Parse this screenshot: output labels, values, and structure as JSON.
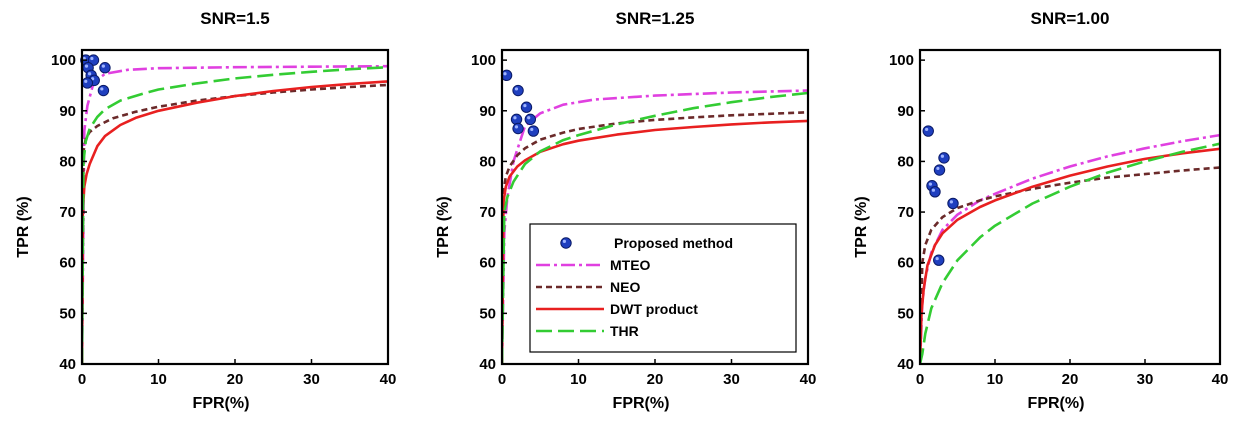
{
  "chart_data": [
    {
      "type": "line",
      "title": "SNR=1.5",
      "xlabel": "FPR(%)",
      "ylabel": "TPR (%)",
      "xlim": [
        0,
        40
      ],
      "ylim": [
        40,
        102
      ],
      "xticks": [
        "0",
        "10",
        "20",
        "30",
        "40"
      ],
      "yticks": [
        "40",
        "50",
        "60",
        "70",
        "80",
        "90",
        "100"
      ],
      "legend": false,
      "scatter": {
        "name": "Proposed method",
        "color": "#1f3fbf",
        "points": [
          [
            0.5,
            100
          ],
          [
            1.5,
            100
          ],
          [
            0.8,
            98.5
          ],
          [
            1.2,
            97
          ],
          [
            1.6,
            96
          ],
          [
            0.7,
            95.5
          ],
          [
            3,
            98.5
          ],
          [
            2.8,
            94
          ]
        ]
      },
      "series": [
        {
          "name": "MTEO",
          "color": "#e040e0",
          "dash": "14 4 3 4",
          "x": [
            0,
            0.3,
            0.7,
            1.5,
            3,
            6,
            10,
            20,
            30,
            40
          ],
          "y": [
            40,
            86,
            91,
            95.5,
            97.3,
            98.1,
            98.4,
            98.6,
            98.7,
            98.8
          ]
        },
        {
          "name": "NEO",
          "color": "#6b2a2a",
          "dash": "6 4",
          "x": [
            0,
            0.2,
            0.5,
            1,
            2,
            4,
            7,
            10,
            15,
            20,
            25,
            30,
            35,
            40
          ],
          "y": [
            40,
            82,
            84.5,
            85.8,
            87,
            88.5,
            89.8,
            90.8,
            92,
            92.9,
            93.6,
            94.2,
            94.7,
            95.1
          ]
        },
        {
          "name": "DWT product",
          "color": "#e82020",
          "dash": "",
          "x": [
            0,
            0.1,
            0.3,
            0.6,
            1,
            2,
            3,
            5,
            7,
            10,
            15,
            20,
            25,
            30,
            35,
            40
          ],
          "y": [
            40,
            70,
            75,
            77.5,
            79.5,
            83,
            85,
            87.2,
            88.6,
            90,
            91.6,
            92.9,
            93.9,
            94.7,
            95.3,
            95.8
          ]
        },
        {
          "name": "THR",
          "color": "#33cc33",
          "dash": "16 6",
          "x": [
            0,
            0.2,
            0.5,
            1,
            2,
            3,
            5,
            8,
            10,
            15,
            20,
            25,
            30,
            35,
            40
          ],
          "y": [
            40,
            80,
            84,
            86.5,
            88.8,
            90.3,
            92,
            93.4,
            94.2,
            95.4,
            96.4,
            97.1,
            97.7,
            98.2,
            98.6
          ]
        }
      ]
    },
    {
      "type": "line",
      "title": "SNR=1.25",
      "xlabel": "FPR(%)",
      "ylabel": "TPR (%)",
      "xlim": [
        0,
        40
      ],
      "ylim": [
        40,
        102
      ],
      "xticks": [
        "0",
        "10",
        "20",
        "30",
        "40"
      ],
      "yticks": [
        "40",
        "50",
        "60",
        "70",
        "80",
        "90",
        "100"
      ],
      "legend": true,
      "legend_position": "bottom-left",
      "scatter": {
        "name": "Proposed method",
        "color": "#1f3fbf",
        "points": [
          [
            0.6,
            97
          ],
          [
            2.1,
            94
          ],
          [
            1.9,
            88.3
          ],
          [
            2.1,
            86.5
          ],
          [
            3.2,
            90.7
          ],
          [
            3.7,
            88.3
          ],
          [
            4.1,
            86
          ]
        ]
      },
      "series": [
        {
          "name": "MTEO",
          "color": "#e040e0",
          "dash": "14 4 3 4",
          "x": [
            0,
            0.3,
            0.7,
            1.5,
            3,
            5,
            8,
            12,
            20,
            30,
            40
          ],
          "y": [
            40,
            66,
            73,
            80,
            87,
            89.5,
            91.2,
            92.2,
            93,
            93.6,
            94
          ]
        },
        {
          "name": "NEO",
          "color": "#6b2a2a",
          "dash": "6 4",
          "x": [
            0,
            0.2,
            0.5,
            1,
            2,
            3,
            5,
            8,
            10,
            15,
            20,
            25,
            30,
            35,
            40
          ],
          "y": [
            40,
            74,
            77,
            79,
            81.2,
            82.6,
            84.3,
            85.7,
            86.4,
            87.5,
            88.2,
            88.7,
            89.1,
            89.4,
            89.7
          ]
        },
        {
          "name": "DWT product",
          "color": "#e82020",
          "dash": "",
          "x": [
            0,
            0.2,
            0.5,
            1,
            2,
            3,
            5,
            8,
            10,
            15,
            20,
            25,
            30,
            35,
            40
          ],
          "y": [
            40,
            72,
            75,
            77,
            79,
            80.2,
            81.9,
            83.4,
            84.1,
            85.3,
            86.2,
            86.8,
            87.3,
            87.7,
            88
          ]
        },
        {
          "name": "THR",
          "color": "#33cc33",
          "dash": "16 6",
          "x": [
            0,
            0.3,
            0.7,
            1.5,
            3,
            5,
            8,
            10,
            15,
            20,
            25,
            30,
            35,
            40
          ],
          "y": [
            40,
            70,
            73,
            76,
            79.5,
            82,
            84.2,
            85.2,
            87.3,
            89,
            90.5,
            91.7,
            92.7,
            93.5
          ]
        }
      ]
    },
    {
      "type": "line",
      "title": "SNR=1.00",
      "xlabel": "FPR(%)",
      "ylabel": "TPR (%)",
      "xlim": [
        0,
        40
      ],
      "ylim": [
        40,
        102
      ],
      "xticks": [
        "0",
        "10",
        "20",
        "30",
        "40"
      ],
      "yticks": [
        "40",
        "50",
        "60",
        "70",
        "80",
        "90",
        "100"
      ],
      "legend": false,
      "scatter": {
        "name": "Proposed method",
        "color": "#1f3fbf",
        "points": [
          [
            1.1,
            86
          ],
          [
            1.6,
            75.2
          ],
          [
            2,
            74
          ],
          [
            2.6,
            78.3
          ],
          [
            3.2,
            80.7
          ],
          [
            4.4,
            71.7
          ],
          [
            2.5,
            60.5
          ]
        ]
      },
      "series": [
        {
          "name": "MTEO",
          "color": "#e040e0",
          "dash": "14 4 3 4",
          "x": [
            0,
            0.3,
            0.7,
            1.5,
            3,
            5,
            8,
            10,
            15,
            20,
            25,
            30,
            35,
            40
          ],
          "y": [
            40,
            52,
            57,
            62,
            66.5,
            69.5,
            72.3,
            73.6,
            76.6,
            79,
            81,
            82.6,
            84,
            85.2
          ]
        },
        {
          "name": "NEO",
          "color": "#6b2a2a",
          "dash": "6 4",
          "x": [
            0,
            0.3,
            0.7,
            1.5,
            3,
            5,
            8,
            10,
            15,
            20,
            25,
            30,
            35,
            40
          ],
          "y": [
            40,
            60,
            63.5,
            66.5,
            69,
            70.8,
            72.3,
            73.1,
            74.6,
            75.8,
            76.8,
            77.5,
            78.2,
            78.8
          ]
        },
        {
          "name": "DWT product",
          "color": "#e82020",
          "dash": "",
          "x": [
            0,
            0.2,
            0.5,
            1,
            2,
            3,
            5,
            8,
            10,
            15,
            20,
            25,
            30,
            35,
            40
          ],
          "y": [
            40,
            50,
            55,
            59.5,
            63.5,
            65.8,
            68.5,
            71,
            72.3,
            75,
            77.2,
            79,
            80.5,
            81.6,
            82.5
          ]
        },
        {
          "name": "THR",
          "color": "#33cc33",
          "dash": "16 6",
          "x": [
            0,
            0.3,
            0.7,
            1.5,
            3,
            5,
            8,
            10,
            15,
            20,
            25,
            30,
            35,
            40
          ],
          "y": [
            40,
            42,
            46,
            51,
            56,
            60.5,
            65,
            67.3,
            71.7,
            75,
            77.8,
            80,
            81.9,
            83.5
          ]
        }
      ]
    }
  ]
}
